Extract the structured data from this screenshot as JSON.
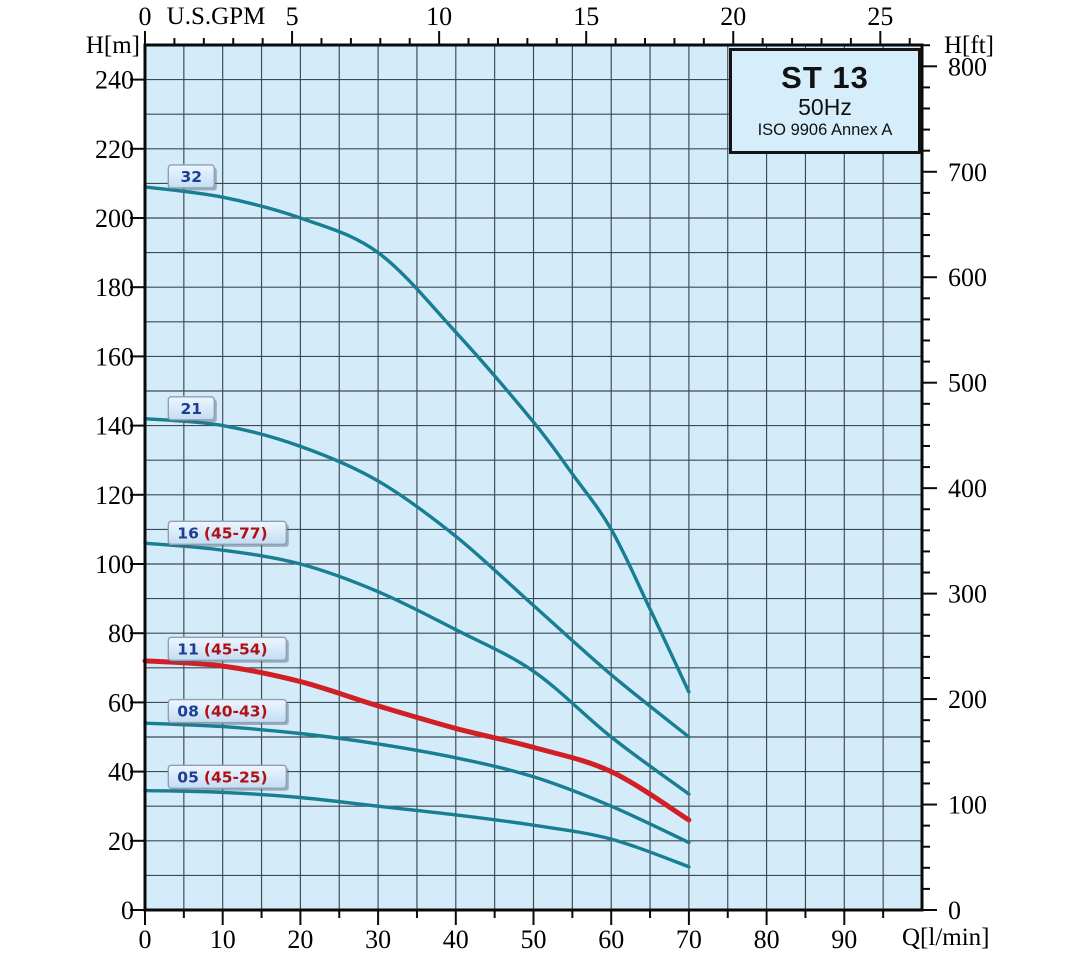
{
  "title_box": {
    "model": "ST 13",
    "frequency": "50Hz",
    "standard": "ISO 9906 Annex A"
  },
  "axis_units": {
    "left": "H[m]",
    "right": "H[ft]",
    "top": "U.S.GPM",
    "bottom": "Q[l/min]"
  },
  "colors": {
    "plot_bg": "#d4ecf9",
    "grid": "#3c4a54",
    "axis": "#0a0a0a",
    "curve_teal": "#187e92",
    "curve_red": "#d11f26",
    "label_box_bg_top": "#eef6ff",
    "label_box_bg_bottom": "#c3ddf2",
    "label_box_border": "#8ba0b5",
    "label_num_color": "#1c3f94",
    "label_range_color": "#ad1117"
  },
  "chart_data": {
    "type": "line",
    "title": "ST 13 50Hz ISO 9906 Annex A",
    "xlabel": "Q[l/min]",
    "ylabel": "H[m]",
    "x2label": "U.S.GPM",
    "y2label": "H[ft]",
    "xlim": [
      0,
      100
    ],
    "ylim": [
      0,
      250
    ],
    "x2lim_usgpm": [
      0,
      26.4
    ],
    "y2lim_ft": [
      0,
      820
    ],
    "grid": true,
    "grid_step_x_lmin": 5,
    "grid_step_y_m": 10,
    "axis_ticks": {
      "bottom_lmin": [
        0,
        10,
        20,
        30,
        40,
        50,
        60,
        70,
        80,
        90
      ],
      "left_m": [
        0,
        20,
        40,
        60,
        80,
        100,
        120,
        140,
        160,
        180,
        200,
        220,
        240
      ],
      "right_ft": [
        0,
        100,
        200,
        300,
        400,
        500,
        600,
        700,
        800
      ],
      "top_usgpm": [
        0,
        5,
        10,
        15,
        20,
        25
      ]
    },
    "series": [
      {
        "id": "32",
        "label_num": "32",
        "label_range": "",
        "color": "#187e92",
        "stroke_width": 3.4,
        "x": [
          0,
          10,
          20,
          30,
          40,
          50,
          55,
          60,
          65,
          70
        ],
        "y": [
          209,
          206,
          200,
          190,
          167,
          141,
          126,
          110,
          87,
          63
        ],
        "label_q": 3,
        "label_h": 212,
        "label_w": 46
      },
      {
        "id": "21",
        "label_num": "21",
        "label_range": "",
        "color": "#187e92",
        "stroke_width": 3.4,
        "x": [
          0,
          10,
          20,
          30,
          40,
          50,
          60,
          70
        ],
        "y": [
          142,
          140,
          134,
          124,
          108,
          88,
          68,
          50
        ],
        "label_q": 3,
        "label_h": 145,
        "label_w": 46
      },
      {
        "id": "16",
        "label_num": "16",
        "label_range": "(45-77)",
        "color": "#187e92",
        "stroke_width": 3.4,
        "x": [
          0,
          10,
          20,
          30,
          40,
          50,
          60,
          70
        ],
        "y": [
          106,
          104,
          100,
          92,
          81,
          69,
          50,
          33.5
        ],
        "label_q": 3,
        "label_h": 109,
        "label_w": 118
      },
      {
        "id": "11",
        "label_num": "11",
        "label_range": "(45-54)",
        "color": "#d11f26",
        "stroke_width": 5,
        "x": [
          0,
          10,
          20,
          30,
          40,
          50,
          60,
          70
        ],
        "y": [
          72,
          70.5,
          66,
          59,
          52.5,
          47,
          40,
          26
        ],
        "label_q": 3,
        "label_h": 75.5,
        "label_w": 118
      },
      {
        "id": "08",
        "label_num": "08",
        "label_range": "(40-43)",
        "color": "#187e92",
        "stroke_width": 3.4,
        "x": [
          0,
          10,
          20,
          30,
          40,
          50,
          60,
          70
        ],
        "y": [
          54,
          53,
          51,
          48,
          44,
          38.5,
          30,
          19.5
        ],
        "label_q": 3,
        "label_h": 57.5,
        "label_w": 118
      },
      {
        "id": "05",
        "label_num": "05",
        "label_range": "(45-25)",
        "color": "#187e92",
        "stroke_width": 3.4,
        "x": [
          0,
          10,
          20,
          30,
          40,
          50,
          60,
          70
        ],
        "y": [
          34.5,
          34,
          32.5,
          30,
          27.5,
          24.5,
          20.5,
          12.5
        ],
        "label_q": 3,
        "label_h": 38.5,
        "label_w": 118
      }
    ]
  }
}
